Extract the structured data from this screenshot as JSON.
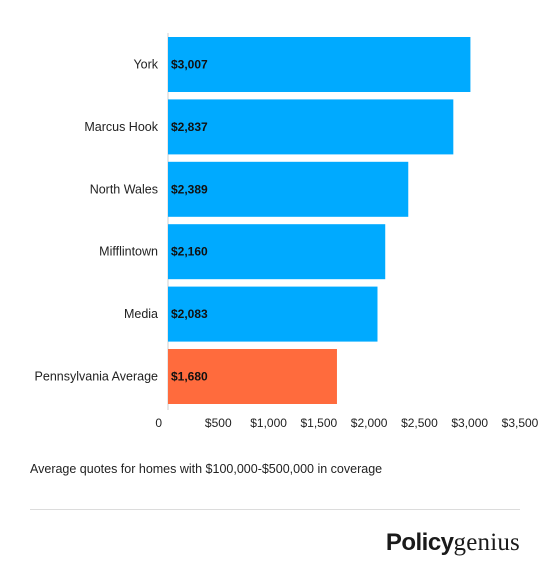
{
  "chart_data": {
    "type": "bar",
    "orientation": "horizontal",
    "categories": [
      "York",
      "Marcus Hook",
      "North Wales",
      "Mifflintown",
      "Media",
      "Pennsylvania Average"
    ],
    "values": [
      3007,
      2837,
      2389,
      2160,
      2083,
      1680
    ],
    "value_labels": [
      "$3,007",
      "$2,837",
      "$2,389",
      "$2,160",
      "$2,083",
      "$1,680"
    ],
    "bar_colors": [
      "#00aaff",
      "#00aaff",
      "#00aaff",
      "#00aaff",
      "#00aaff",
      "#ff6b3d"
    ],
    "xlim": [
      0,
      3500
    ],
    "x_ticks": [
      0,
      500,
      1000,
      1500,
      2000,
      2500,
      3000,
      3500
    ],
    "x_tick_labels": [
      "0",
      "$500",
      "$1,000",
      "$1,500",
      "$2,000",
      "$2,500",
      "$3,000",
      "$3,500"
    ],
    "grid": false,
    "legend": "none",
    "title": "",
    "xlabel": "",
    "ylabel": ""
  },
  "caption": "Average quotes for homes with $100,000-$500,000 in coverage",
  "brand": {
    "bold": "Policy",
    "light": "genius"
  }
}
